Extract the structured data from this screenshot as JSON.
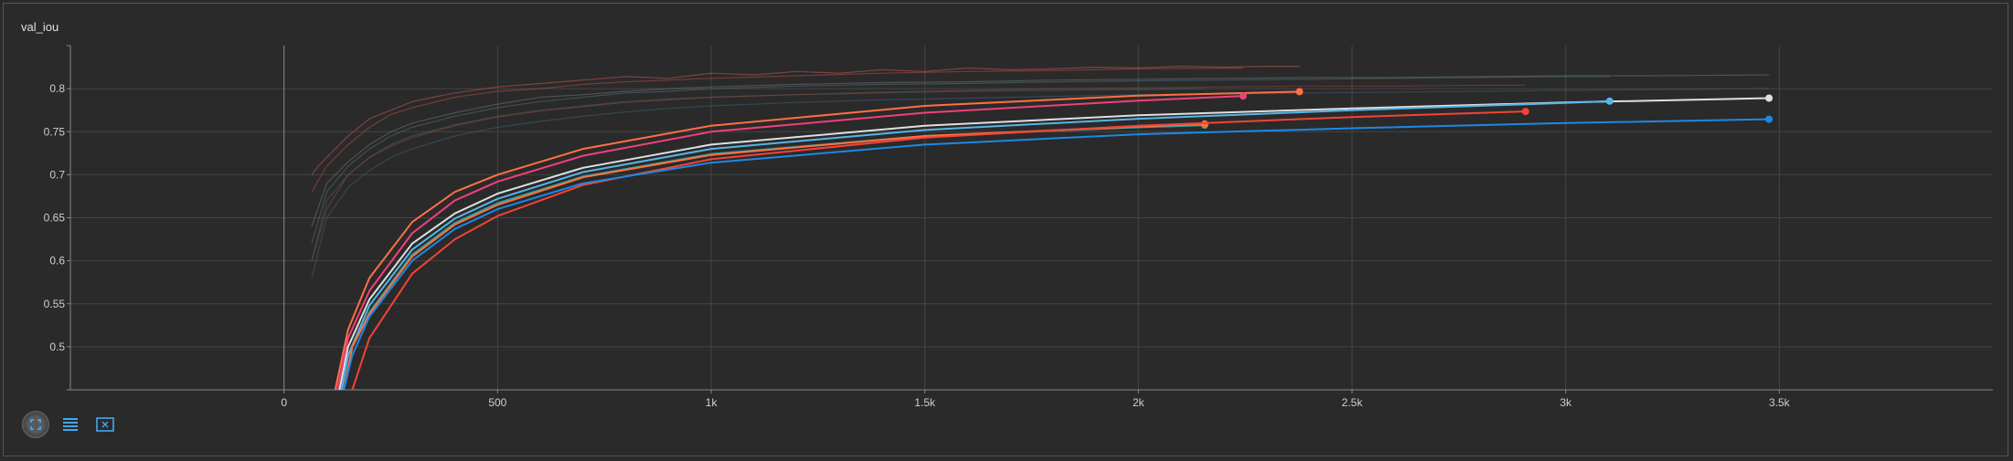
{
  "panel": {
    "title": "val_iou"
  },
  "toolbar": {
    "icons": [
      "fit-domain-icon",
      "toggle-log-icon",
      "expand-icon"
    ]
  },
  "chart_data": {
    "type": "line",
    "title": "val_iou",
    "xlim": [
      -500,
      4000
    ],
    "ylim": [
      0.45,
      0.85
    ],
    "x_ticks": [
      0,
      500,
      1000,
      1500,
      2000,
      2500,
      3000,
      3500
    ],
    "x_tick_labels": [
      "0",
      "500",
      "1k",
      "1.5k",
      "2k",
      "2.5k",
      "3k",
      "3.5k"
    ],
    "y_ticks": [
      0.5,
      0.55,
      0.6,
      0.65,
      0.7,
      0.75,
      0.8
    ],
    "y_tick_labels": [
      "0.5",
      "0.55",
      "0.6",
      "0.65",
      "0.7",
      "0.75",
      "0.8"
    ],
    "grid": true,
    "smoothed_series": [
      {
        "color": "#ff7043",
        "x": [
          120,
          150,
          200,
          300,
          400,
          500,
          700,
          1000,
          1500,
          2000,
          2377
        ],
        "y": [
          0.45,
          0.52,
          0.58,
          0.645,
          0.68,
          0.7,
          0.73,
          0.757,
          0.78,
          0.792,
          0.7965
        ]
      },
      {
        "color": "#f0407a",
        "x": [
          125,
          150,
          200,
          300,
          400,
          500,
          700,
          1000,
          1500,
          2000,
          2245
        ],
        "y": [
          0.45,
          0.51,
          0.565,
          0.632,
          0.67,
          0.692,
          0.722,
          0.75,
          0.772,
          0.786,
          0.7915
        ]
      },
      {
        "color": "#e0e0e0",
        "x": [
          130,
          150,
          200,
          300,
          400,
          500,
          700,
          1000,
          1500,
          2000,
          2500,
          3000,
          3476
        ],
        "y": [
          0.45,
          0.5,
          0.555,
          0.62,
          0.655,
          0.678,
          0.708,
          0.735,
          0.757,
          0.769,
          0.777,
          0.784,
          0.789
        ]
      },
      {
        "color": "#57b5e8",
        "x": [
          135,
          150,
          200,
          300,
          400,
          500,
          700,
          1000,
          1500,
          2000,
          2500,
          3000,
          3103
        ],
        "y": [
          0.45,
          0.49,
          0.548,
          0.613,
          0.649,
          0.672,
          0.703,
          0.73,
          0.752,
          0.765,
          0.775,
          0.7835,
          0.7855
        ]
      },
      {
        "color": "#2aa198",
        "x": [
          140,
          160,
          200,
          300,
          400,
          500,
          700,
          1000,
          1500,
          2000,
          2155
        ],
        "y": [
          0.45,
          0.5,
          0.54,
          0.607,
          0.644,
          0.667,
          0.698,
          0.724,
          0.745,
          0.755,
          0.7575
        ]
      },
      {
        "color": "#ff7043",
        "x": [
          140,
          160,
          200,
          300,
          400,
          500,
          700,
          1000,
          1500,
          2000,
          2155
        ],
        "y": [
          0.45,
          0.5,
          0.538,
          0.605,
          0.642,
          0.665,
          0.697,
          0.723,
          0.745,
          0.756,
          0.759
        ]
      },
      {
        "color": "#f44336",
        "x": [
          160,
          200,
          300,
          400,
          500,
          700,
          1000,
          1500,
          2000,
          2500,
          2906
        ],
        "y": [
          0.45,
          0.51,
          0.585,
          0.625,
          0.652,
          0.688,
          0.718,
          0.743,
          0.757,
          0.767,
          0.7735
        ]
      },
      {
        "color": "#1e88e5",
        "x": [
          140,
          160,
          200,
          300,
          400,
          500,
          700,
          1000,
          1500,
          2000,
          2500,
          3000,
          3476
        ],
        "y": [
          0.45,
          0.49,
          0.535,
          0.6,
          0.637,
          0.66,
          0.69,
          0.714,
          0.735,
          0.747,
          0.754,
          0.76,
          0.7645
        ]
      }
    ],
    "raw_series": [
      {
        "color": "#b55350",
        "x": [
          65,
          80,
          100,
          150,
          200,
          250,
          300,
          350,
          400,
          500,
          600,
          700,
          800,
          900,
          1000,
          1100,
          1200,
          1300,
          1400,
          1500,
          1600,
          1700,
          1800,
          1900,
          2000,
          2100,
          2200,
          2300,
          2377
        ],
        "y": [
          0.7,
          0.71,
          0.72,
          0.745,
          0.765,
          0.775,
          0.785,
          0.79,
          0.795,
          0.802,
          0.806,
          0.81,
          0.814,
          0.812,
          0.818,
          0.816,
          0.82,
          0.818,
          0.822,
          0.82,
          0.824,
          0.822,
          0.823,
          0.825,
          0.824,
          0.826,
          0.825,
          0.826,
          0.826
        ]
      },
      {
        "color": "#a84848",
        "x": [
          65,
          100,
          150,
          200,
          250,
          300,
          400,
          500,
          600,
          700,
          800,
          900,
          1000,
          1200,
          1400,
          1600,
          1800,
          2000,
          2245
        ],
        "y": [
          0.68,
          0.71,
          0.735,
          0.755,
          0.77,
          0.778,
          0.79,
          0.797,
          0.8,
          0.805,
          0.808,
          0.81,
          0.812,
          0.815,
          0.818,
          0.82,
          0.821,
          0.823,
          0.824
        ]
      },
      {
        "color": "#6b6b6b",
        "x": [
          65,
          100,
          150,
          200,
          250,
          300,
          400,
          500,
          600,
          700,
          800,
          900,
          1000,
          1200,
          1400,
          1600,
          1800,
          2000,
          2200,
          2400,
          2600,
          2800,
          3000,
          3200,
          3476
        ],
        "y": [
          0.64,
          0.69,
          0.715,
          0.735,
          0.75,
          0.76,
          0.772,
          0.782,
          0.79,
          0.793,
          0.797,
          0.8,
          0.802,
          0.805,
          0.807,
          0.808,
          0.81,
          0.811,
          0.812,
          0.813,
          0.813,
          0.814,
          0.815,
          0.815,
          0.816
        ]
      },
      {
        "color": "#4a6a78",
        "x": [
          65,
          100,
          150,
          200,
          250,
          300,
          400,
          500,
          600,
          700,
          800,
          900,
          1000,
          1200,
          1400,
          1600,
          1800,
          2000,
          2200,
          2400,
          2600,
          2800,
          3000,
          3103
        ],
        "y": [
          0.62,
          0.68,
          0.71,
          0.73,
          0.745,
          0.755,
          0.768,
          0.778,
          0.785,
          0.79,
          0.795,
          0.797,
          0.8,
          0.803,
          0.805,
          0.806,
          0.808,
          0.809,
          0.81,
          0.811,
          0.812,
          0.813,
          0.814,
          0.814
        ]
      },
      {
        "color": "#3a6060",
        "x": [
          65,
          100,
          150,
          200,
          250,
          300,
          400,
          500,
          600,
          700,
          800,
          900,
          1000,
          1200,
          1400,
          1600,
          1800,
          2000,
          2155
        ],
        "y": [
          0.6,
          0.67,
          0.7,
          0.72,
          0.735,
          0.745,
          0.758,
          0.768,
          0.775,
          0.78,
          0.785,
          0.788,
          0.79,
          0.793,
          0.795,
          0.797,
          0.798,
          0.799,
          0.8
        ]
      },
      {
        "color": "#8a4040",
        "x": [
          65,
          100,
          150,
          200,
          250,
          300,
          400,
          500,
          600,
          700,
          800,
          900,
          1000,
          1200,
          1400,
          1600,
          1800,
          2000,
          2200,
          2400,
          2600,
          2800,
          2906
        ],
        "y": [
          0.6,
          0.66,
          0.7,
          0.72,
          0.733,
          0.743,
          0.757,
          0.767,
          0.774,
          0.779,
          0.784,
          0.787,
          0.79,
          0.793,
          0.796,
          0.798,
          0.8,
          0.801,
          0.802,
          0.803,
          0.803,
          0.804,
          0.804
        ]
      },
      {
        "color": "#3d5a70",
        "x": [
          65,
          100,
          150,
          200,
          250,
          300,
          400,
          500,
          600,
          700,
          800,
          900,
          1000,
          1200,
          1400,
          1600,
          1800,
          2000,
          2200,
          2400,
          2600,
          2800,
          3000,
          3200,
          3476
        ],
        "y": [
          0.58,
          0.65,
          0.685,
          0.705,
          0.72,
          0.73,
          0.745,
          0.755,
          0.762,
          0.768,
          0.773,
          0.777,
          0.78,
          0.784,
          0.787,
          0.789,
          0.791,
          0.793,
          0.794,
          0.795,
          0.796,
          0.797,
          0.798,
          0.799,
          0.8
        ]
      }
    ]
  }
}
